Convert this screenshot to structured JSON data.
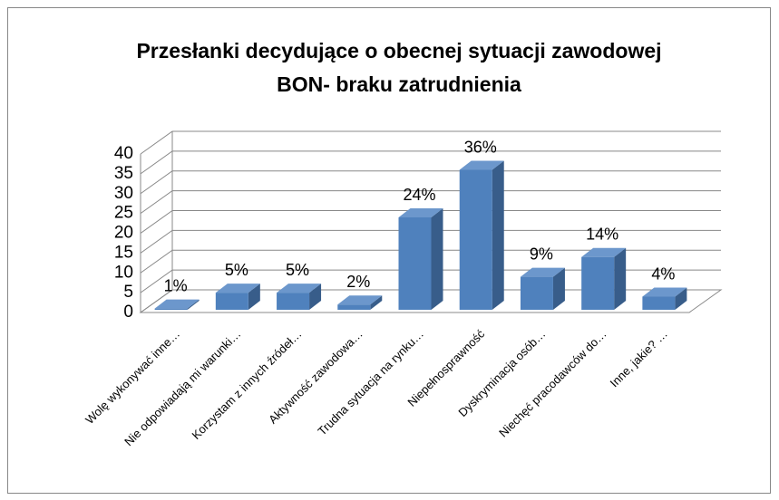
{
  "chart_data": {
    "type": "bar3d",
    "title": [
      "Przesłanki decydujące o obecnej sytuacji zawodowej",
      "BON- braku zatrudnienia"
    ],
    "categories": [
      "Wolę wykonywać inne…",
      "Nie odpowiadają mi warunki…",
      "Korzystam z innych źródeł…",
      "Aktywność zawodowa…",
      "Trudna sytuacja na rynku…",
      "Niepełnosprawność",
      "Dyskryminacja osób…",
      "Niechęć pracodawców do…",
      "Inne, jakie? …"
    ],
    "values": [
      1,
      5,
      5,
      2,
      24,
      36,
      9,
      14,
      4
    ],
    "value_labels": [
      "1%",
      "5%",
      "5%",
      "2%",
      "24%",
      "36%",
      "9%",
      "14%",
      "4%"
    ],
    "color": "#4f81bd",
    "ylim": [
      0,
      40
    ],
    "yticks": [
      0,
      5,
      10,
      15,
      20,
      25,
      30,
      35,
      40
    ],
    "grid": true
  }
}
